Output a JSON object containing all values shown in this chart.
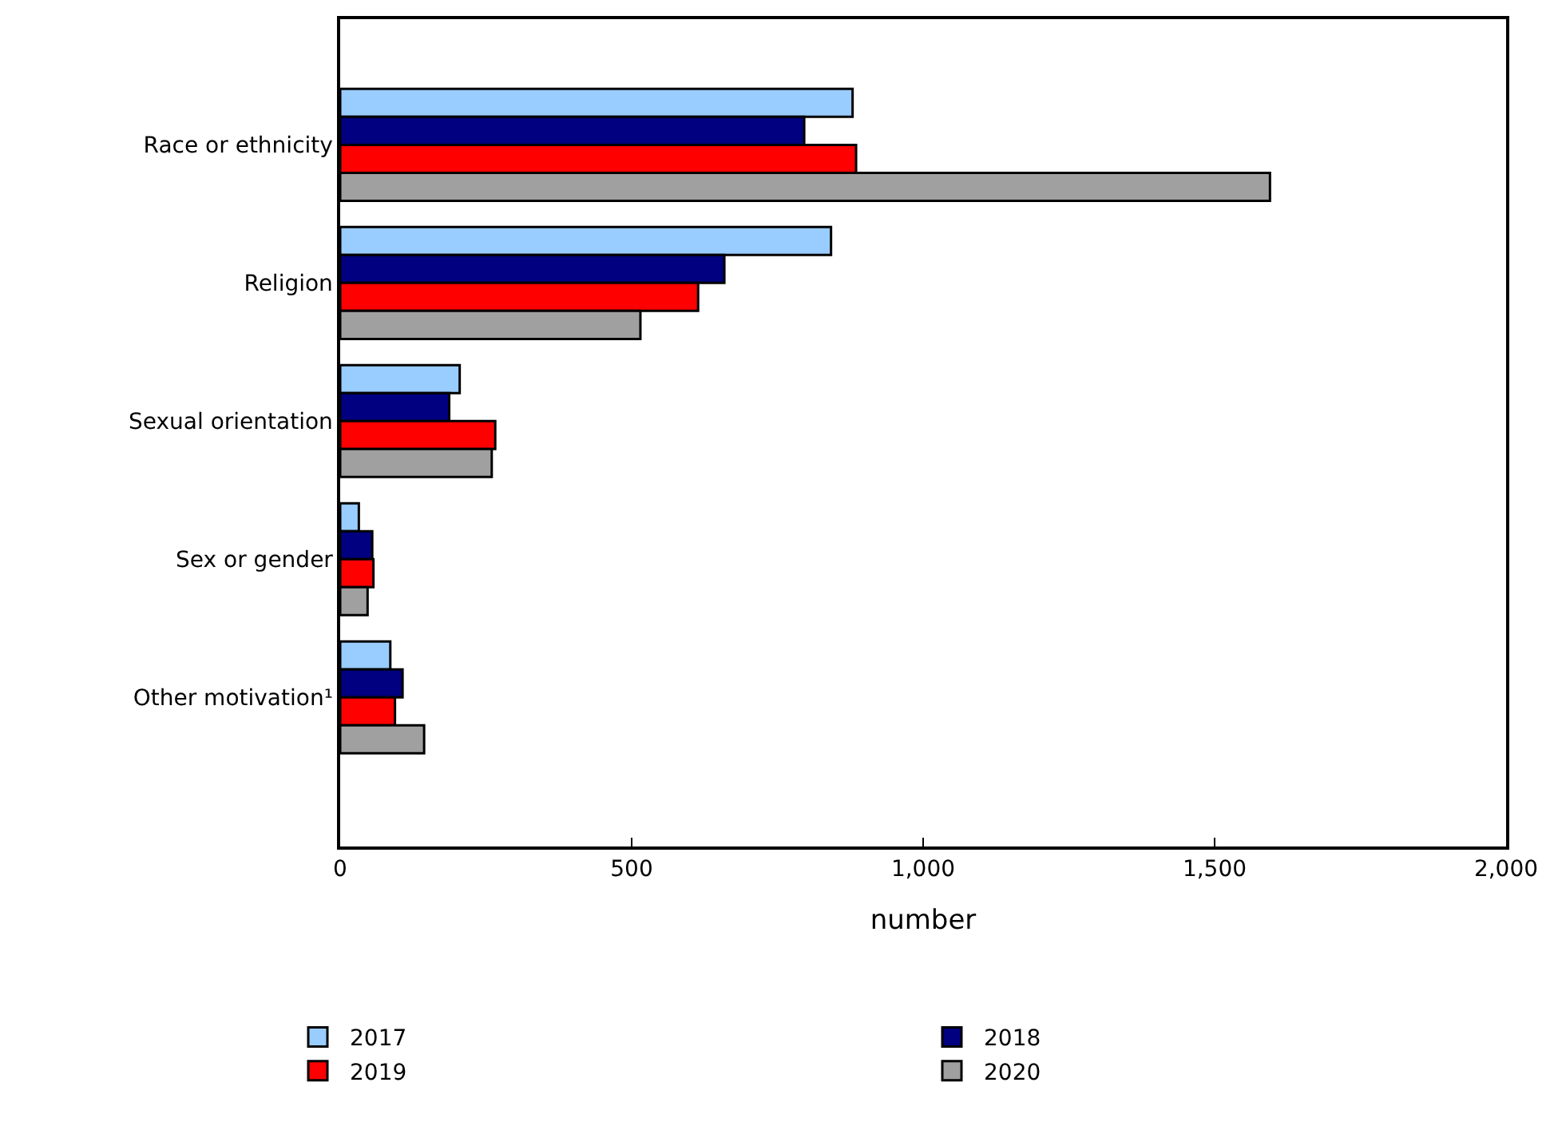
{
  "chart_data": {
    "type": "bar",
    "orientation": "horizontal",
    "xlabel": "number",
    "categories": [
      "Race or ethnicity",
      "Religion",
      "Sexual orientation",
      "Sex or gender",
      "Other motivation¹"
    ],
    "series": [
      {
        "name": "2017",
        "color": "#99ccff",
        "values": [
          879,
          842,
          205,
          32,
          86
        ]
      },
      {
        "name": "2018",
        "color": "#000080",
        "values": [
          796,
          659,
          187,
          55,
          107
        ]
      },
      {
        "name": "2019",
        "color": "#ff0000",
        "values": [
          885,
          614,
          266,
          57,
          94
        ]
      },
      {
        "name": "2020",
        "color": "#a0a0a0",
        "values": [
          1595,
          515,
          260,
          47,
          144
        ]
      }
    ],
    "xlim": [
      0,
      2000
    ],
    "xticks": [
      0,
      {
        "value": 500,
        "label": "500"
      },
      {
        "value": 1000,
        "label": "1,000"
      },
      {
        "value": 1500,
        "label": "1,500"
      },
      {
        "value": 2000,
        "label": "2,000"
      }
    ],
    "legend": "bottom"
  }
}
